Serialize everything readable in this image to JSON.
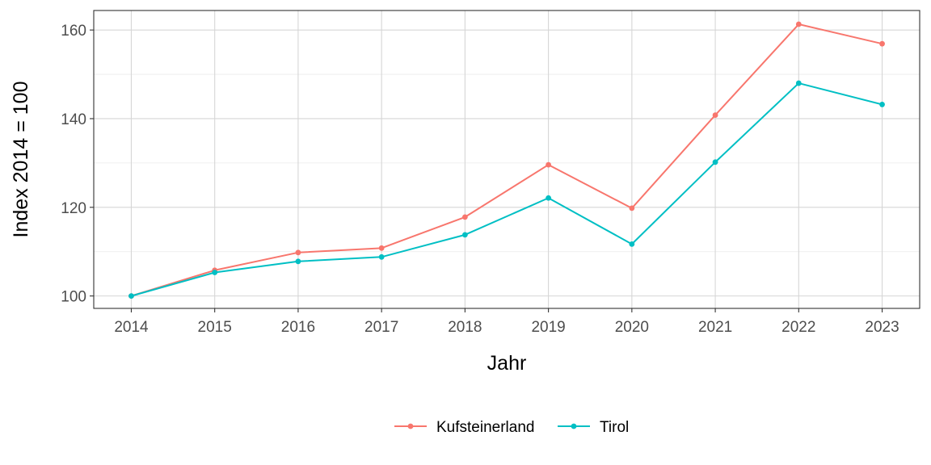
{
  "chart_data": {
    "type": "line",
    "title": "",
    "xlabel": "Jahr",
    "ylabel": "Index  2014  = 100",
    "x": [
      2014,
      2015,
      2016,
      2017,
      2018,
      2019,
      2020,
      2021,
      2022,
      2023
    ],
    "x_tick_labels": [
      "2014",
      "2015",
      "2016",
      "2017",
      "2018",
      "2019",
      "2020",
      "2021",
      "2022",
      "2023"
    ],
    "y_ticks": [
      100,
      120,
      140,
      160
    ],
    "y_tick_labels": [
      "100",
      "120",
      "140",
      "160"
    ],
    "xlim": [
      2013.55,
      2023.45
    ],
    "ylim": [
      97.2,
      164.4
    ],
    "grid": true,
    "legend_position": "bottom",
    "series": [
      {
        "name": "Kufsteinerland",
        "color": "#F8766D",
        "values": [
          100.0,
          105.8,
          109.8,
          110.8,
          117.8,
          129.6,
          119.8,
          140.8,
          161.3,
          156.9
        ]
      },
      {
        "name": "Tirol",
        "color": "#00BFC4",
        "values": [
          100.0,
          105.3,
          107.8,
          108.8,
          113.8,
          122.1,
          111.7,
          130.2,
          148.0,
          143.2
        ]
      }
    ]
  }
}
